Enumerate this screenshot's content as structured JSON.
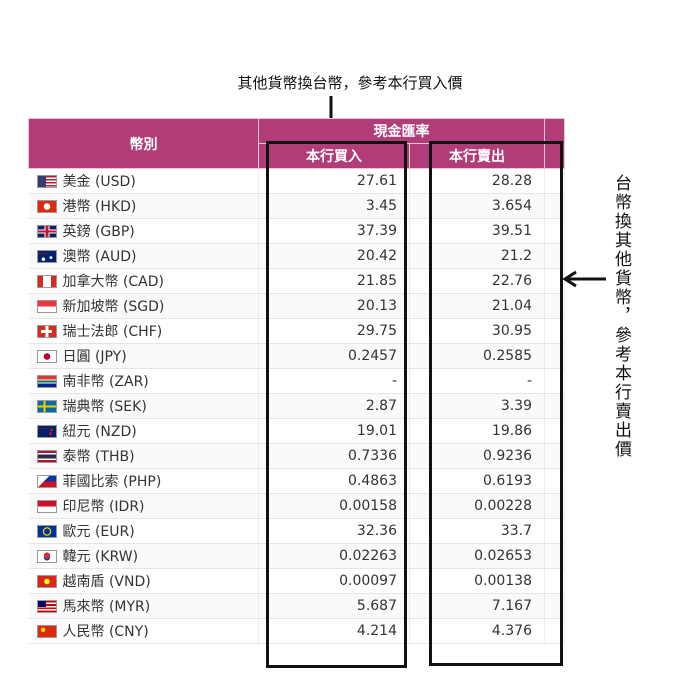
{
  "annotations": {
    "top": "其他貨幣換台幣，參考本行買入價",
    "side": "台幣換其他貨幣，參考本行賣出價"
  },
  "table": {
    "header_currency": "幣別",
    "header_group": "現金匯率",
    "header_buy": "本行買入",
    "header_sell": "本行賣出",
    "rows": [
      {
        "name": "美金 (USD)",
        "buy": "27.61",
        "sell": "28.28",
        "flag": "us-flag-icon"
      },
      {
        "name": "港幣 (HKD)",
        "buy": "3.45",
        "sell": "3.654",
        "flag": "hk-flag-icon"
      },
      {
        "name": "英鎊 (GBP)",
        "buy": "37.39",
        "sell": "39.51",
        "flag": "gb-flag-icon"
      },
      {
        "name": "澳幣 (AUD)",
        "buy": "20.42",
        "sell": "21.2",
        "flag": "au-flag-icon"
      },
      {
        "name": "加拿大幣 (CAD)",
        "buy": "21.85",
        "sell": "22.76",
        "flag": "ca-flag-icon"
      },
      {
        "name": "新加坡幣 (SGD)",
        "buy": "20.13",
        "sell": "21.04",
        "flag": "sg-flag-icon"
      },
      {
        "name": "瑞士法郎 (CHF)",
        "buy": "29.75",
        "sell": "30.95",
        "flag": "ch-flag-icon"
      },
      {
        "name": "日圓 (JPY)",
        "buy": "0.2457",
        "sell": "0.2585",
        "flag": "jp-flag-icon"
      },
      {
        "name": "南非幣 (ZAR)",
        "buy": "-",
        "sell": "-",
        "flag": "za-flag-icon"
      },
      {
        "name": "瑞典幣 (SEK)",
        "buy": "2.87",
        "sell": "3.39",
        "flag": "se-flag-icon"
      },
      {
        "name": "紐元 (NZD)",
        "buy": "19.01",
        "sell": "19.86",
        "flag": "nz-flag-icon"
      },
      {
        "name": "泰幣 (THB)",
        "buy": "0.7336",
        "sell": "0.9236",
        "flag": "th-flag-icon"
      },
      {
        "name": "菲國比索 (PHP)",
        "buy": "0.4863",
        "sell": "0.6193",
        "flag": "ph-flag-icon"
      },
      {
        "name": "印尼幣 (IDR)",
        "buy": "0.00158",
        "sell": "0.00228",
        "flag": "id-flag-icon"
      },
      {
        "name": "歐元 (EUR)",
        "buy": "32.36",
        "sell": "33.7",
        "flag": "eu-flag-icon"
      },
      {
        "name": "韓元 (KRW)",
        "buy": "0.02263",
        "sell": "0.02653",
        "flag": "kr-flag-icon"
      },
      {
        "name": "越南盾 (VND)",
        "buy": "0.00097",
        "sell": "0.00138",
        "flag": "vn-flag-icon"
      },
      {
        "name": "馬來幣 (MYR)",
        "buy": "5.687",
        "sell": "7.167",
        "flag": "my-flag-icon"
      },
      {
        "name": "人民幣 (CNY)",
        "buy": "4.214",
        "sell": "4.376",
        "flag": "cn-flag-icon"
      }
    ]
  },
  "colors": {
    "header_bg": "#b03d78",
    "header_text": "#ffffff",
    "frame": "#111111"
  }
}
